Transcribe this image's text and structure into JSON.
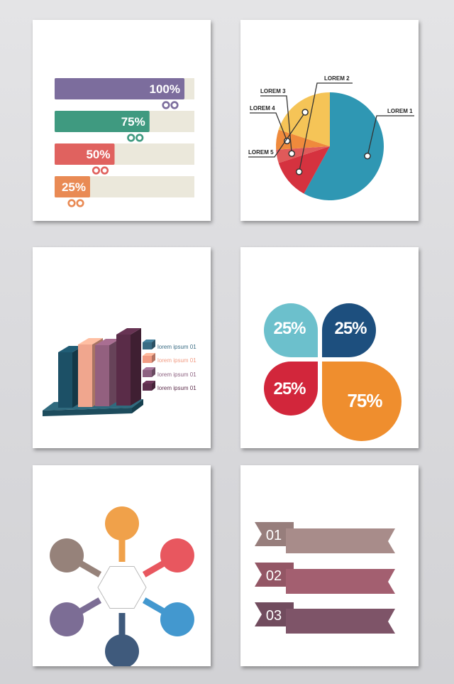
{
  "chart_data": [
    {
      "type": "bar",
      "categories": [
        "100%",
        "75%",
        "50%",
        "25%"
      ],
      "values": [
        100,
        75,
        50,
        25
      ],
      "labels": [
        "100%",
        "75%",
        "50%",
        "25%"
      ],
      "xlim": [
        0,
        100
      ],
      "colors": [
        "#7c6d9d",
        "#3f9a80",
        "#e0625f",
        "#e98a54"
      ]
    },
    {
      "type": "pie",
      "labels": [
        "LOREM 1",
        "LOREM 2",
        "LOREM 3",
        "LOREM 4",
        "LOREM 5"
      ],
      "values": [
        58,
        12,
        4,
        6,
        20
      ],
      "colors": [
        "#2f97b3",
        "#d5323f",
        "#e05a5a",
        "#ef8a3c",
        "#f5c457"
      ]
    },
    {
      "type": "bar",
      "categories": [
        "lorem ipsum 01",
        "lorem ipsum 01",
        "lorem ipsum 01",
        "lorem ipsum 01"
      ],
      "values": [
        78,
        88,
        86,
        100
      ],
      "legend": [
        "lorem ipsum 01",
        "lorem ipsum 01",
        "lorem ipsum 01",
        "lorem ipsum 01"
      ],
      "colors": [
        "#1c5066",
        "#f0a68e",
        "#93607f",
        "#5a2c48"
      ],
      "legend_colors": [
        "#3a6c84",
        "#f19b83",
        "#8d6281",
        "#5d2e4c"
      ]
    },
    {
      "type": "pie",
      "labels": [
        "25%",
        "25%",
        "25%",
        "75%"
      ],
      "values": [
        25,
        25,
        25,
        75
      ],
      "colors": [
        "#6cc0cc",
        "#1d4f7e",
        "#d2263b",
        "#ef8e2e"
      ]
    }
  ],
  "diagram": {
    "nodes": [
      "",
      "",
      "",
      "",
      "",
      ""
    ],
    "colors": [
      "#f0a14a",
      "#e8575f",
      "#4398cf",
      "#3f5a7c",
      "#7c6d95",
      "#96827a"
    ]
  },
  "ribbons": {
    "items": [
      "01",
      "02",
      "03"
    ],
    "colors": [
      "#a88c8a",
      "#a35f70",
      "#7e5468"
    ]
  }
}
